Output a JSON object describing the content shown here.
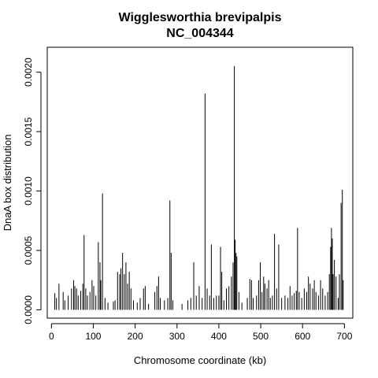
{
  "chart_data": {
    "type": "bar",
    "title": "Wigglesworthia brevipalpis",
    "subtitle": "NC_004344",
    "xlabel": "Chromosome coordinate (kb)",
    "ylabel": "DnaA box distribution",
    "xlim": [
      -10,
      720
    ],
    "ylim": [
      -7e-05,
      0.00221
    ],
    "x_ticks": [
      0,
      100,
      200,
      300,
      400,
      500,
      600,
      700
    ],
    "x_tick_labels": [
      "0",
      "100",
      "200",
      "300",
      "400",
      "500",
      "600",
      "700"
    ],
    "y_ticks": [
      0.0,
      0.0005,
      0.001,
      0.0015,
      0.002
    ],
    "y_tick_labels": [
      "0.0000",
      "0.0005",
      "0.0010",
      "0.0015",
      "0.0020"
    ],
    "grid": false,
    "legend": "none",
    "color": "#000000",
    "points": [
      [
        8,
        0.00014
      ],
      [
        12,
        0.0001
      ],
      [
        18,
        0.00022
      ],
      [
        28,
        0.00015
      ],
      [
        32,
        8e-05
      ],
      [
        40,
        0.00012
      ],
      [
        48,
        0.00018
      ],
      [
        53,
        0.00025
      ],
      [
        56,
        0.0002
      ],
      [
        60,
        0.00018
      ],
      [
        64,
        0.00012
      ],
      [
        70,
        0.00016
      ],
      [
        75,
        0.00022
      ],
      [
        78,
        0.00063
      ],
      [
        82,
        0.00018
      ],
      [
        86,
        0.00012
      ],
      [
        92,
        0.00015
      ],
      [
        97,
        0.00025
      ],
      [
        101,
        0.0002
      ],
      [
        106,
        0.00012
      ],
      [
        112,
        0.00057
      ],
      [
        116,
        0.0004
      ],
      [
        118,
        0.00025
      ],
      [
        122,
        0.00098
      ],
      [
        128,
        0.0001
      ],
      [
        135,
        6e-05
      ],
      [
        148,
        7e-05
      ],
      [
        152,
        8e-05
      ],
      [
        158,
        0.00032
      ],
      [
        163,
        0.0003
      ],
      [
        166,
        0.00035
      ],
      [
        170,
        0.00048
      ],
      [
        174,
        0.0003
      ],
      [
        178,
        0.0004
      ],
      [
        182,
        0.00022
      ],
      [
        186,
        0.00032
      ],
      [
        190,
        0.00018
      ],
      [
        196,
        8e-05
      ],
      [
        205,
        6e-05
      ],
      [
        212,
        0.0001
      ],
      [
        220,
        0.00018
      ],
      [
        224,
        0.0002
      ],
      [
        232,
        5e-05
      ],
      [
        247,
        0.00015
      ],
      [
        252,
        0.0002
      ],
      [
        256,
        0.00028
      ],
      [
        260,
        0.0001
      ],
      [
        270,
        8e-05
      ],
      [
        278,
        0.0001
      ],
      [
        283,
        0.00092
      ],
      [
        286,
        0.00048
      ],
      [
        290,
        8e-05
      ],
      [
        312,
        5e-05
      ],
      [
        326,
        8e-05
      ],
      [
        333,
        0.0001
      ],
      [
        340,
        0.0004
      ],
      [
        346,
        0.00012
      ],
      [
        353,
        0.0002
      ],
      [
        360,
        0.0001
      ],
      [
        367,
        0.00182
      ],
      [
        372,
        0.00018
      ],
      [
        378,
        0.00012
      ],
      [
        382,
        0.00055
      ],
      [
        388,
        0.0001
      ],
      [
        394,
        0.00012
      ],
      [
        400,
        0.00012
      ],
      [
        404,
        0.00053
      ],
      [
        407,
        0.00032
      ],
      [
        412,
        8e-05
      ],
      [
        418,
        0.00018
      ],
      [
        424,
        0.0002
      ],
      [
        430,
        0.00028
      ],
      [
        434,
        0.0004
      ],
      [
        437,
        0.00205
      ],
      [
        439,
        0.00059
      ],
      [
        441,
        0.00048
      ],
      [
        443,
        0.00045
      ],
      [
        448,
        0.00015
      ],
      [
        455,
        6e-05
      ],
      [
        468,
        0.0001
      ],
      [
        474,
        0.00026
      ],
      [
        478,
        0.00025
      ],
      [
        482,
        0.0001
      ],
      [
        490,
        0.00012
      ],
      [
        495,
        0.00025
      ],
      [
        499,
        0.0004
      ],
      [
        503,
        0.00015
      ],
      [
        507,
        0.00028
      ],
      [
        510,
        0.00022
      ],
      [
        515,
        0.00018
      ],
      [
        519,
        0.00025
      ],
      [
        523,
        0.0001
      ],
      [
        528,
        0.00012
      ],
      [
        533,
        0.00064
      ],
      [
        538,
        0.00018
      ],
      [
        543,
        0.00055
      ],
      [
        550,
        0.0001
      ],
      [
        558,
        0.00012
      ],
      [
        565,
        0.0001
      ],
      [
        570,
        0.0002
      ],
      [
        575,
        0.00012
      ],
      [
        580,
        0.00014
      ],
      [
        585,
        0.00016
      ],
      [
        588,
        0.00069
      ],
      [
        592,
        0.00015
      ],
      [
        598,
        0.0001
      ],
      [
        604,
        0.00018
      ],
      [
        610,
        0.00015
      ],
      [
        614,
        0.00028
      ],
      [
        618,
        0.00022
      ],
      [
        624,
        0.00018
      ],
      [
        628,
        0.00025
      ],
      [
        632,
        0.00015
      ],
      [
        638,
        0.00012
      ],
      [
        643,
        0.00025
      ],
      [
        648,
        0.00018
      ],
      [
        654,
        0.00012
      ],
      [
        660,
        0.00015
      ],
      [
        664,
        0.0003
      ],
      [
        667,
        0.00053
      ],
      [
        669,
        0.00069
      ],
      [
        671,
        0.0006
      ],
      [
        673,
        0.0003
      ],
      [
        676,
        0.00042
      ],
      [
        680,
        0.00028
      ],
      [
        685,
        0.0001
      ],
      [
        688,
        0.0003
      ],
      [
        692,
        0.0009
      ],
      [
        695,
        0.00101
      ],
      [
        697,
        0.00025
      ]
    ]
  }
}
